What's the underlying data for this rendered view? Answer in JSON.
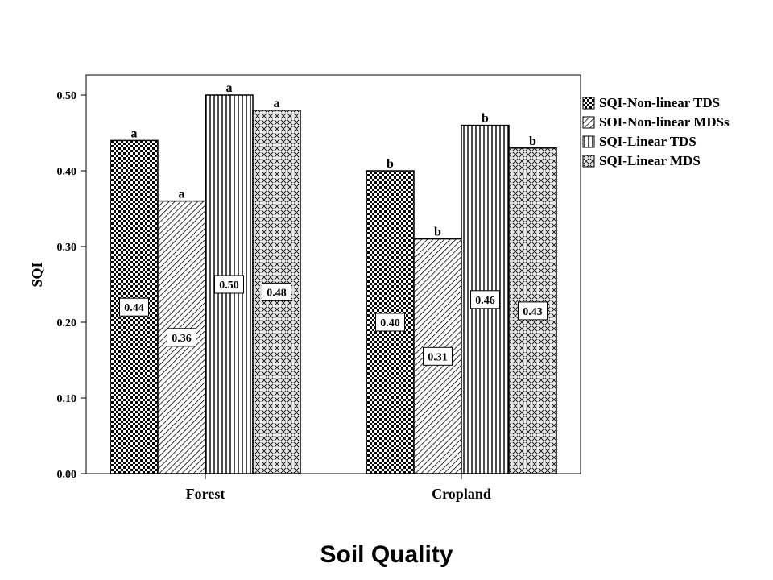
{
  "caption": "Soil Quality",
  "chart_data": {
    "type": "bar",
    "title": "",
    "xlabel": "",
    "ylabel": "SQI",
    "categories": [
      "Forest",
      "Cropland"
    ],
    "ylim": [
      0,
      0.5
    ],
    "yticks": [
      "0.00",
      "0.10",
      "0.20",
      "0.30",
      "0.40",
      "0.50"
    ],
    "grid": false,
    "legend_position": "top-right",
    "series": [
      {
        "name": "SQI-Non-linear TDS",
        "pattern": "checker",
        "values": [
          0.44,
          0.4
        ],
        "value_labels": [
          "0.44",
          "0.40"
        ],
        "letters": [
          "a",
          "b"
        ]
      },
      {
        "name": "SOI-Non-linear MDSs",
        "pattern": "diagonal",
        "values": [
          0.36,
          0.31
        ],
        "value_labels": [
          "0.36",
          "0.31"
        ],
        "letters": [
          "a",
          "b"
        ]
      },
      {
        "name": "SQI-Linear TDS",
        "pattern": "vertical",
        "values": [
          0.5,
          0.46
        ],
        "value_labels": [
          "0.50",
          "0.46"
        ],
        "letters": [
          "a",
          "b"
        ]
      },
      {
        "name": "SQI-Linear MDS",
        "pattern": "dotted",
        "values": [
          0.48,
          0.43
        ],
        "value_labels": [
          "0.48",
          "0.43"
        ],
        "letters": [
          "a",
          "b"
        ]
      }
    ]
  }
}
